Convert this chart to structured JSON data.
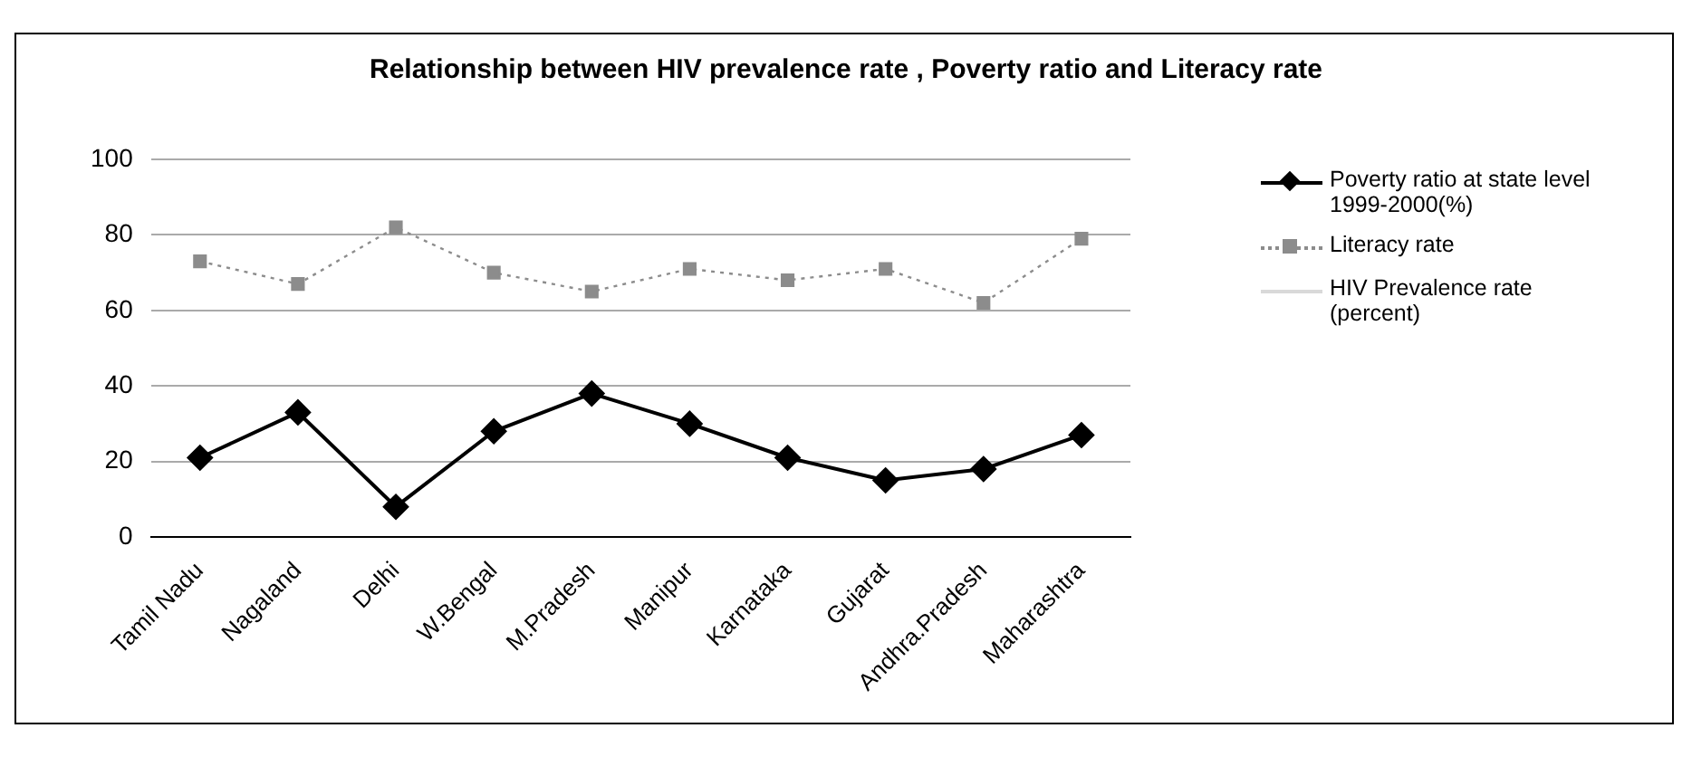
{
  "chart_data": {
    "type": "line",
    "title": "Relationship between HIV prevalence rate , Poverty ratio and Literacy rate",
    "categories": [
      "Tamil Nadu",
      "Nagaland",
      "Delhi",
      "W.Bengal",
      "M.Pradesh",
      "Manipur",
      "Karnataka",
      "Gujarat",
      "Andhra.Pradesh",
      "Maharashtra"
    ],
    "series": [
      {
        "name": "Poverty ratio at state level 1999-2000(%)",
        "color": "#000000",
        "marker": "diamond",
        "line_style": "solid",
        "values": [
          21,
          33,
          8,
          28,
          38,
          30,
          21,
          15,
          18,
          27
        ]
      },
      {
        "name": "Literacy rate",
        "color": "#8c8c8c",
        "marker": "square",
        "line_style": "dotted",
        "values": [
          73,
          67,
          82,
          70,
          65,
          71,
          68,
          71,
          62,
          79
        ]
      },
      {
        "name": "HIV Prevalence rate (percent)",
        "color": "#d9d9d9",
        "marker": "none",
        "line_style": "solid",
        "values": [
          null,
          null,
          null,
          null,
          null,
          null,
          null,
          null,
          null,
          null
        ]
      }
    ],
    "ylim": [
      0,
      100
    ],
    "yticks": [
      0,
      20,
      40,
      60,
      80,
      100
    ],
    "grid": "y",
    "legend": "right"
  }
}
